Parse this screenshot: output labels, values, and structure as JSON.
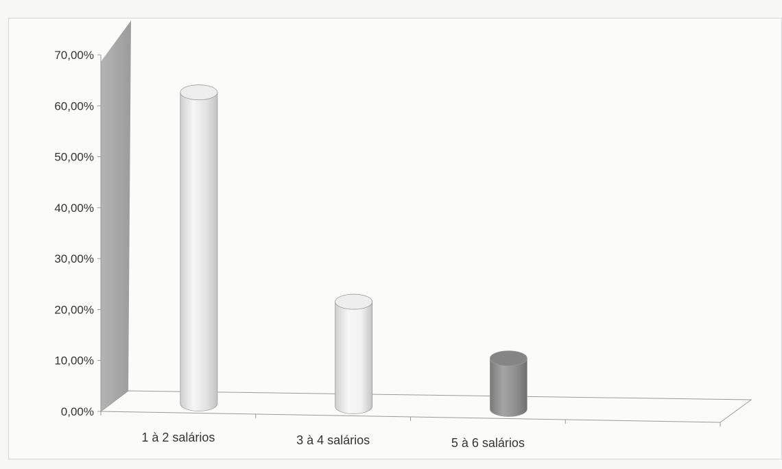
{
  "chart_data": {
    "type": "bar",
    "style": "3d-cylinder",
    "categories": [
      "1 à 2 salários",
      "3 à 4 salários",
      "5 à 6 salários",
      ""
    ],
    "values": [
      63.0,
      22.0,
      11.0,
      null
    ],
    "ylim": [
      0,
      70
    ],
    "yticks": [
      0,
      10,
      20,
      30,
      40,
      50,
      60,
      70
    ],
    "ytick_labels": [
      "0,00%",
      "10,00%",
      "20,00%",
      "30,00%",
      "40,00%",
      "50,00%",
      "60,00%",
      "70,00%"
    ],
    "title": "",
    "xlabel": "",
    "ylabel": "",
    "grid": false,
    "legend": "none",
    "colors": {
      "bars": [
        "#e3e3e3",
        "#f2f2f2",
        "#8f8f8f"
      ],
      "back_wall": "#9c9c9c",
      "axis": "#9a9a9a"
    }
  }
}
